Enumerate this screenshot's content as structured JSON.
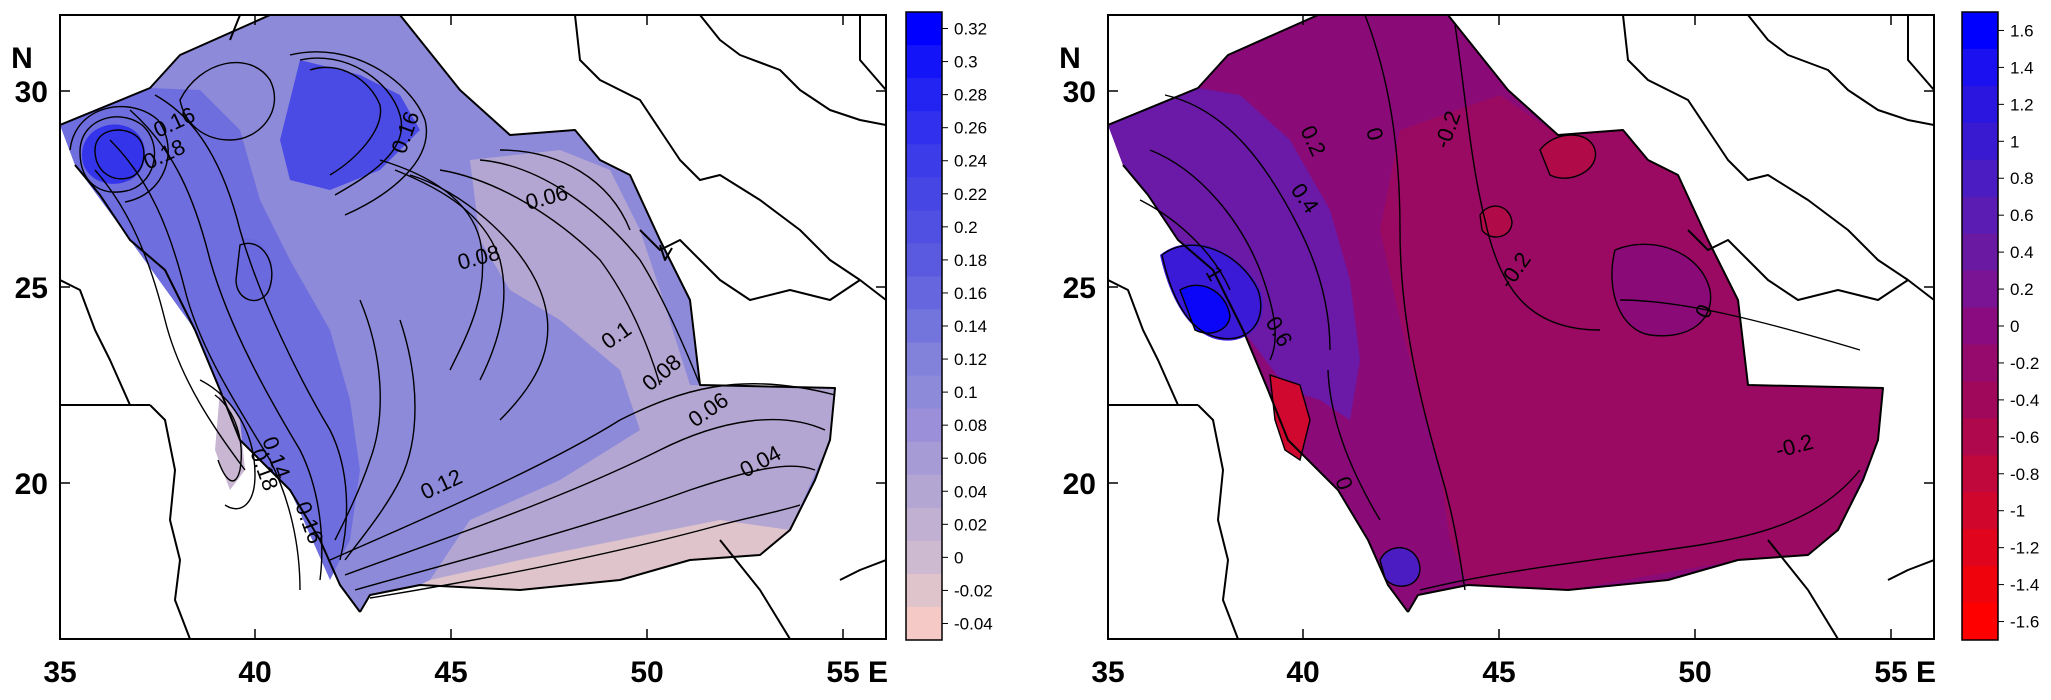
{
  "maps": [
    {
      "id": "left",
      "lon_ticks": [
        "35",
        "40",
        "45",
        "50",
        "55"
      ],
      "lat_ticks": [
        "20",
        "25",
        "30"
      ],
      "lon_unit": "E",
      "lat_unit": "N",
      "colorbar": {
        "labels": [
          "0.32",
          "0.3",
          "0.28",
          "0.26",
          "0.24",
          "0.22",
          "0.2",
          "0.18",
          "0.16",
          "0.14",
          "0.12",
          "0.1",
          "0.08",
          "0.06",
          "0.04",
          "0.02",
          "0",
          "-0.02",
          "-0.04"
        ],
        "colors": [
          "#0000ff",
          "#1414f8",
          "#2424f2",
          "#3030ee",
          "#3c3ce9",
          "#4646e5",
          "#5050e3",
          "#5a5ae0",
          "#6666de",
          "#7474dd",
          "#8282db",
          "#8e8ada",
          "#9a8fd8",
          "#a69bd4",
          "#b3a6d2",
          "#c1b0d2",
          "#cdb9d0",
          "#dfc5cb",
          "#f5c9c6"
        ]
      },
      "contour_labels": [
        "0.16",
        "0.18",
        "0.06",
        "0.08",
        "0.1",
        "0.08",
        "0.06",
        "0.04",
        "0.12",
        "0.14",
        "0.16",
        "0.18",
        "0.16"
      ]
    },
    {
      "id": "right",
      "lon_ticks": [
        "35",
        "40",
        "45",
        "50",
        "55"
      ],
      "lat_ticks": [
        "20",
        "25",
        "30"
      ],
      "lon_unit": "E",
      "lat_unit": "N",
      "colorbar": {
        "labels": [
          "1.6",
          "1.4",
          "1.2",
          "1",
          "0.8",
          "0.6",
          "0.4",
          "0.2",
          "0",
          "-0.2",
          "-0.4",
          "-0.6",
          "-0.8",
          "-1",
          "-1.2",
          "-1.4",
          "-1.6"
        ],
        "colors": [
          "#0000ff",
          "#1a10f0",
          "#2a16df",
          "#3a1ad0",
          "#4a1cc2",
          "#5a1cb2",
          "#6a1aa2",
          "#7a1494",
          "#8a0a80",
          "#950a6c",
          "#a0085c",
          "#b0084c",
          "#c0083c",
          "#d0062c",
          "#e0041c",
          "#f0020c",
          "#ff0000"
        ]
      },
      "contour_labels": [
        "0.2",
        "0.4",
        "1",
        "0.6",
        "0",
        "-0.2",
        "-0.2",
        "0",
        "0",
        "-0.2"
      ]
    }
  ]
}
